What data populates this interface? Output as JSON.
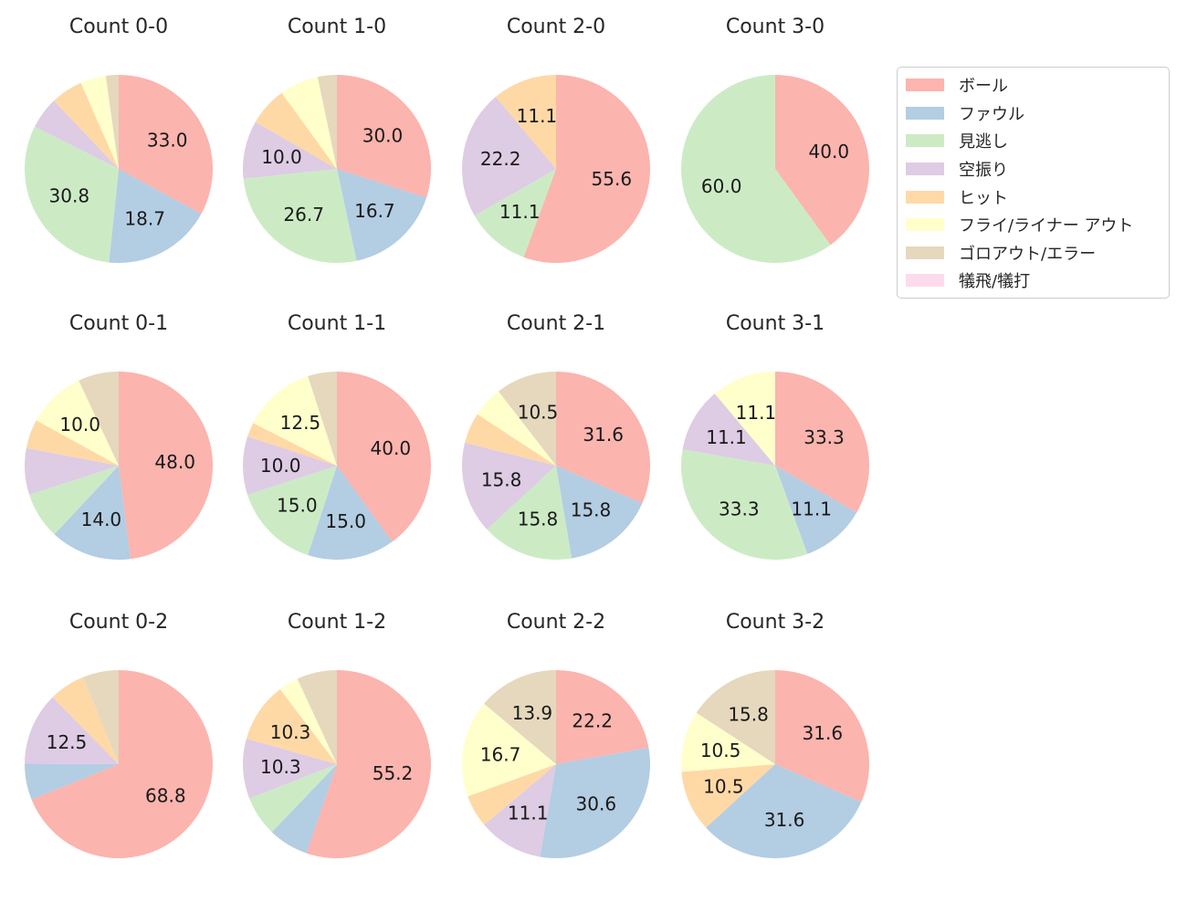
{
  "figure": {
    "background": "#ffffff",
    "text_color": "#262626"
  },
  "legend": {
    "position": "top-right",
    "items": [
      {
        "key": "ball",
        "label": "ボール",
        "color": "#fbb4ae"
      },
      {
        "key": "foul",
        "label": "ファウル",
        "color": "#b3cde3"
      },
      {
        "key": "called-strike",
        "label": "見逃し",
        "color": "#ccebc5"
      },
      {
        "key": "swinging-strike",
        "label": "空振り",
        "color": "#decbe4"
      },
      {
        "key": "hit",
        "label": "ヒット",
        "color": "#fed9a6"
      },
      {
        "key": "fly-liner-out",
        "label": "フライ/ライナー アウト",
        "color": "#ffffcc"
      },
      {
        "key": "ground-out-error",
        "label": "ゴロアウト/エラー",
        "color": "#e5d8bd"
      },
      {
        "key": "sac-fly-bunt",
        "label": "犠飛/犠打",
        "color": "#fddaec"
      }
    ]
  },
  "chart_data": [
    {
      "type": "pie",
      "title": "Count 0-0",
      "start_angle_deg": 90,
      "direction": "clockwise",
      "label_threshold_pct": 10,
      "slices": [
        {
          "key": "ball",
          "value": 33.0,
          "label": "33.0"
        },
        {
          "key": "foul",
          "value": 18.7,
          "label": "18.7"
        },
        {
          "key": "called-strike",
          "value": 30.8,
          "label": "30.8"
        },
        {
          "key": "swinging-strike",
          "value": 5.5,
          "label": ""
        },
        {
          "key": "hit",
          "value": 5.5,
          "label": ""
        },
        {
          "key": "fly-liner-out",
          "value": 4.4,
          "label": ""
        },
        {
          "key": "ground-out-error",
          "value": 2.2,
          "label": ""
        }
      ]
    },
    {
      "type": "pie",
      "title": "Count 1-0",
      "start_angle_deg": 90,
      "direction": "clockwise",
      "label_threshold_pct": 10,
      "slices": [
        {
          "key": "ball",
          "value": 30.0,
          "label": "30.0"
        },
        {
          "key": "foul",
          "value": 16.7,
          "label": "16.7"
        },
        {
          "key": "called-strike",
          "value": 26.7,
          "label": "26.7"
        },
        {
          "key": "swinging-strike",
          "value": 10.0,
          "label": "10.0"
        },
        {
          "key": "hit",
          "value": 6.7,
          "label": ""
        },
        {
          "key": "fly-liner-out",
          "value": 6.7,
          "label": ""
        },
        {
          "key": "ground-out-error",
          "value": 3.3,
          "label": ""
        }
      ]
    },
    {
      "type": "pie",
      "title": "Count 2-0",
      "start_angle_deg": 90,
      "direction": "clockwise",
      "label_threshold_pct": 10,
      "slices": [
        {
          "key": "ball",
          "value": 55.6,
          "label": "55.6"
        },
        {
          "key": "called-strike",
          "value": 11.1,
          "label": "11.1"
        },
        {
          "key": "swinging-strike",
          "value": 22.2,
          "label": "22.2"
        },
        {
          "key": "hit",
          "value": 11.1,
          "label": "11.1"
        }
      ]
    },
    {
      "type": "pie",
      "title": "Count 3-0",
      "start_angle_deg": 90,
      "direction": "clockwise",
      "label_threshold_pct": 10,
      "slices": [
        {
          "key": "ball",
          "value": 40.0,
          "label": "40.0"
        },
        {
          "key": "called-strike",
          "value": 60.0,
          "label": "60.0"
        }
      ]
    },
    {
      "type": "pie",
      "title": "Count 0-1",
      "start_angle_deg": 90,
      "direction": "clockwise",
      "label_threshold_pct": 10,
      "slices": [
        {
          "key": "ball",
          "value": 48.0,
          "label": "48.0"
        },
        {
          "key": "foul",
          "value": 14.0,
          "label": "14.0"
        },
        {
          "key": "called-strike",
          "value": 8.0,
          "label": ""
        },
        {
          "key": "swinging-strike",
          "value": 8.0,
          "label": ""
        },
        {
          "key": "hit",
          "value": 5.0,
          "label": ""
        },
        {
          "key": "fly-liner-out",
          "value": 10.0,
          "label": "10.0"
        },
        {
          "key": "ground-out-error",
          "value": 7.0,
          "label": ""
        }
      ]
    },
    {
      "type": "pie",
      "title": "Count 1-1",
      "start_angle_deg": 90,
      "direction": "clockwise",
      "label_threshold_pct": 10,
      "slices": [
        {
          "key": "ball",
          "value": 40.0,
          "label": "40.0"
        },
        {
          "key": "foul",
          "value": 15.0,
          "label": "15.0"
        },
        {
          "key": "called-strike",
          "value": 15.0,
          "label": "15.0"
        },
        {
          "key": "swinging-strike",
          "value": 10.0,
          "label": "10.0"
        },
        {
          "key": "hit",
          "value": 2.5,
          "label": ""
        },
        {
          "key": "fly-liner-out",
          "value": 12.5,
          "label": "12.5"
        },
        {
          "key": "ground-out-error",
          "value": 5.0,
          "label": ""
        }
      ]
    },
    {
      "type": "pie",
      "title": "Count 2-1",
      "start_angle_deg": 90,
      "direction": "clockwise",
      "label_threshold_pct": 10,
      "slices": [
        {
          "key": "ball",
          "value": 31.6,
          "label": "31.6"
        },
        {
          "key": "foul",
          "value": 15.8,
          "label": "15.8"
        },
        {
          "key": "called-strike",
          "value": 15.8,
          "label": "15.8"
        },
        {
          "key": "swinging-strike",
          "value": 15.8,
          "label": "15.8"
        },
        {
          "key": "hit",
          "value": 5.3,
          "label": ""
        },
        {
          "key": "fly-liner-out",
          "value": 5.3,
          "label": ""
        },
        {
          "key": "ground-out-error",
          "value": 10.5,
          "label": "10.5"
        }
      ]
    },
    {
      "type": "pie",
      "title": "Count 3-1",
      "start_angle_deg": 90,
      "direction": "clockwise",
      "label_threshold_pct": 10,
      "slices": [
        {
          "key": "ball",
          "value": 33.3,
          "label": "33.3"
        },
        {
          "key": "foul",
          "value": 11.1,
          "label": "11.1"
        },
        {
          "key": "called-strike",
          "value": 33.3,
          "label": "33.3"
        },
        {
          "key": "swinging-strike",
          "value": 11.1,
          "label": "11.1"
        },
        {
          "key": "fly-liner-out",
          "value": 11.1,
          "label": "11.1"
        }
      ]
    },
    {
      "type": "pie",
      "title": "Count 0-2",
      "start_angle_deg": 90,
      "direction": "clockwise",
      "label_threshold_pct": 10,
      "slices": [
        {
          "key": "ball",
          "value": 68.8,
          "label": "68.8"
        },
        {
          "key": "foul",
          "value": 6.2,
          "label": ""
        },
        {
          "key": "swinging-strike",
          "value": 12.5,
          "label": "12.5"
        },
        {
          "key": "hit",
          "value": 6.2,
          "label": ""
        },
        {
          "key": "ground-out-error",
          "value": 6.2,
          "label": ""
        }
      ]
    },
    {
      "type": "pie",
      "title": "Count 1-2",
      "start_angle_deg": 90,
      "direction": "clockwise",
      "label_threshold_pct": 10,
      "slices": [
        {
          "key": "ball",
          "value": 55.2,
          "label": "55.2"
        },
        {
          "key": "foul",
          "value": 6.9,
          "label": ""
        },
        {
          "key": "called-strike",
          "value": 6.9,
          "label": ""
        },
        {
          "key": "swinging-strike",
          "value": 10.3,
          "label": "10.3"
        },
        {
          "key": "hit",
          "value": 10.3,
          "label": "10.3"
        },
        {
          "key": "fly-liner-out",
          "value": 3.4,
          "label": ""
        },
        {
          "key": "ground-out-error",
          "value": 6.9,
          "label": ""
        }
      ]
    },
    {
      "type": "pie",
      "title": "Count 2-2",
      "start_angle_deg": 90,
      "direction": "clockwise",
      "label_threshold_pct": 10,
      "slices": [
        {
          "key": "ball",
          "value": 22.2,
          "label": "22.2"
        },
        {
          "key": "foul",
          "value": 30.6,
          "label": "30.6"
        },
        {
          "key": "swinging-strike",
          "value": 11.1,
          "label": "11.1"
        },
        {
          "key": "hit",
          "value": 5.6,
          "label": ""
        },
        {
          "key": "fly-liner-out",
          "value": 16.7,
          "label": "16.7"
        },
        {
          "key": "ground-out-error",
          "value": 13.9,
          "label": "13.9"
        }
      ]
    },
    {
      "type": "pie",
      "title": "Count 3-2",
      "start_angle_deg": 90,
      "direction": "clockwise",
      "label_threshold_pct": 10,
      "slices": [
        {
          "key": "ball",
          "value": 31.6,
          "label": "31.6"
        },
        {
          "key": "foul",
          "value": 31.6,
          "label": "31.6"
        },
        {
          "key": "hit",
          "value": 10.5,
          "label": "10.5"
        },
        {
          "key": "fly-liner-out",
          "value": 10.5,
          "label": "10.5"
        },
        {
          "key": "ground-out-error",
          "value": 15.8,
          "label": "15.8"
        }
      ]
    }
  ]
}
